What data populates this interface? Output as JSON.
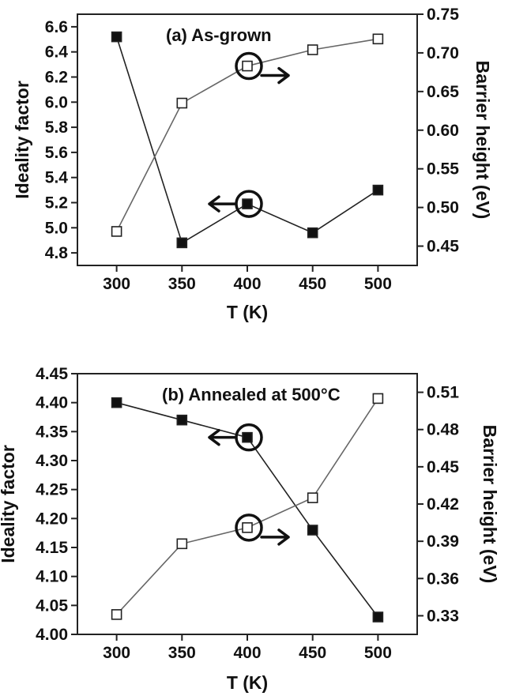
{
  "chart_data": [
    {
      "type": "line",
      "title": "(a) As-grown",
      "xlabel": "T (K)",
      "ylabel": "Ideality factor",
      "y2label": "Barrier height (eV)",
      "xlim": [
        270,
        530
      ],
      "ylim": [
        4.7,
        6.7
      ],
      "y2lim": [
        0.425,
        0.75
      ],
      "xticks": [
        "300",
        "350",
        "400",
        "450",
        "500"
      ],
      "yticks": [
        "4.8",
        "5.0",
        "5.2",
        "5.4",
        "5.6",
        "5.8",
        "6.0",
        "6.2",
        "6.4",
        "6.6"
      ],
      "y2ticks": [
        "0.45",
        "0.50",
        "0.55",
        "0.60",
        "0.65",
        "0.70",
        "0.75"
      ],
      "x": [
        300,
        350,
        400,
        450,
        500
      ],
      "series": [
        {
          "axis": "left",
          "marker": "filled-square",
          "values": [
            6.52,
            4.88,
            5.19,
            4.96,
            5.3
          ]
        },
        {
          "axis": "right",
          "marker": "open-square",
          "values": [
            0.469,
            0.635,
            0.683,
            0.704,
            0.718
          ]
        }
      ],
      "annotations": [
        {
          "kind": "arrow-left",
          "points_to": "left axis",
          "at": {
            "x": 400,
            "y": 5.19
          }
        },
        {
          "kind": "arrow-right",
          "points_to": "right axis",
          "at": {
            "x": 400,
            "y": 0.683
          }
        }
      ]
    },
    {
      "type": "line",
      "title": "(b) Annealed at 500°C",
      "xlabel": "T (K)",
      "ylabel": "Ideality factor",
      "y2label": "Barrier height (eV)",
      "xlim": [
        270,
        530
      ],
      "ylim": [
        4.0,
        4.45
      ],
      "y2lim": [
        0.315,
        0.525
      ],
      "xticks": [
        "300",
        "350",
        "400",
        "450",
        "500"
      ],
      "yticks": [
        "4.00",
        "4.05",
        "4.10",
        "4.15",
        "4.20",
        "4.25",
        "4.30",
        "4.35",
        "4.40",
        "4.45"
      ],
      "y2ticks": [
        "0.33",
        "0.36",
        "0.39",
        "0.42",
        "0.45",
        "0.48",
        "0.51"
      ],
      "x": [
        300,
        350,
        400,
        450,
        500
      ],
      "series": [
        {
          "axis": "left",
          "marker": "filled-square",
          "values": [
            4.4,
            4.37,
            4.34,
            4.18,
            4.03
          ]
        },
        {
          "axis": "right",
          "marker": "open-square",
          "values": [
            0.331,
            0.388,
            0.401,
            0.425,
            0.505
          ]
        }
      ],
      "annotations": [
        {
          "kind": "arrow-left",
          "points_to": "left axis",
          "at": {
            "x": 400,
            "y": 4.34
          }
        },
        {
          "kind": "arrow-right",
          "points_to": "right axis",
          "at": {
            "x": 400,
            "y": 0.401
          }
        }
      ]
    }
  ]
}
